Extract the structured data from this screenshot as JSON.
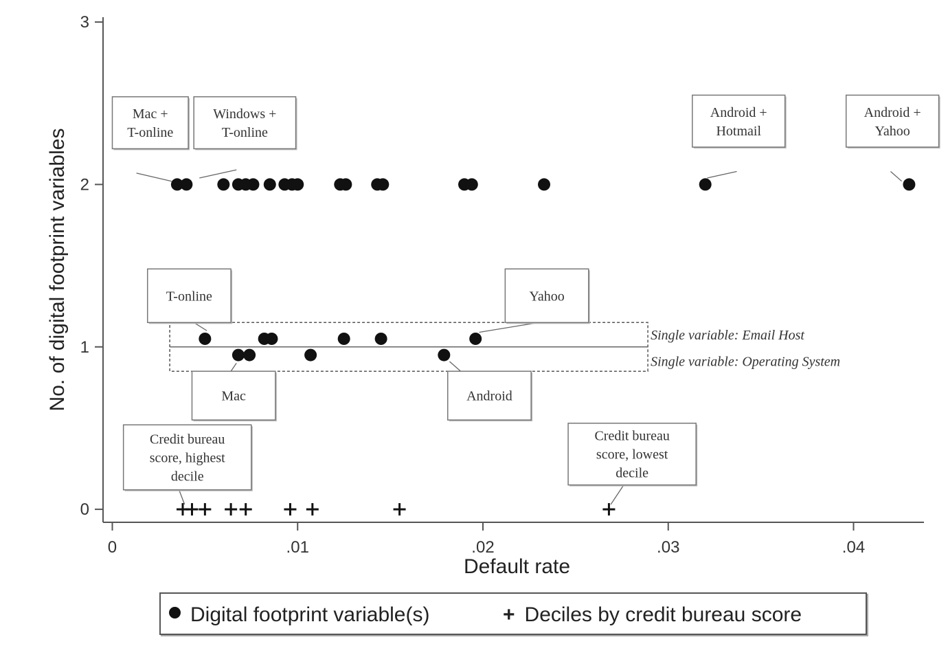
{
  "chart_data": {
    "type": "scatter",
    "xlabel": "Default rate",
    "ylabel": "No. of digital footprint variables",
    "xlim": [
      -0.0005,
      0.0438
    ],
    "ylim": [
      -0.08,
      3.03
    ],
    "x_ticks": [
      {
        "value": 0,
        "label": "0"
      },
      {
        "value": 0.01,
        "label": ".01"
      },
      {
        "value": 0.02,
        "label": ".02"
      },
      {
        "value": 0.03,
        "label": ".03"
      },
      {
        "value": 0.04,
        "label": ".04"
      }
    ],
    "y_ticks": [
      {
        "value": 0,
        "label": "0"
      },
      {
        "value": 1,
        "label": "1"
      },
      {
        "value": 2,
        "label": "2"
      },
      {
        "value": 3,
        "label": "3"
      }
    ],
    "grid": false,
    "legend_position": "bottom",
    "series": [
      {
        "name": "Digital footprint variable(s)",
        "marker": "dot",
        "points": [
          {
            "x": 0.0035,
            "y": 2
          },
          {
            "x": 0.004,
            "y": 2
          },
          {
            "x": 0.006,
            "y": 2
          },
          {
            "x": 0.0068,
            "y": 2
          },
          {
            "x": 0.0072,
            "y": 2
          },
          {
            "x": 0.0076,
            "y": 2
          },
          {
            "x": 0.0085,
            "y": 2
          },
          {
            "x": 0.0093,
            "y": 2
          },
          {
            "x": 0.0097,
            "y": 2
          },
          {
            "x": 0.01,
            "y": 2
          },
          {
            "x": 0.0123,
            "y": 2
          },
          {
            "x": 0.0126,
            "y": 2
          },
          {
            "x": 0.0143,
            "y": 2
          },
          {
            "x": 0.0146,
            "y": 2
          },
          {
            "x": 0.019,
            "y": 2
          },
          {
            "x": 0.0194,
            "y": 2
          },
          {
            "x": 0.0233,
            "y": 2
          },
          {
            "x": 0.032,
            "y": 2
          },
          {
            "x": 0.043,
            "y": 2
          },
          {
            "x": 0.005,
            "y": 1.05
          },
          {
            "x": 0.0082,
            "y": 1.05
          },
          {
            "x": 0.0086,
            "y": 1.05
          },
          {
            "x": 0.0125,
            "y": 1.05
          },
          {
            "x": 0.0145,
            "y": 1.05
          },
          {
            "x": 0.0196,
            "y": 1.05
          },
          {
            "x": 0.0068,
            "y": 0.95
          },
          {
            "x": 0.0074,
            "y": 0.95
          },
          {
            "x": 0.0107,
            "y": 0.95
          },
          {
            "x": 0.0179,
            "y": 0.95
          }
        ]
      },
      {
        "name": "Deciles by credit bureau score",
        "marker": "plus",
        "points": [
          {
            "x": 0.0038,
            "y": 0
          },
          {
            "x": 0.0043,
            "y": 0
          },
          {
            "x": 0.005,
            "y": 0
          },
          {
            "x": 0.0064,
            "y": 0
          },
          {
            "x": 0.0072,
            "y": 0
          },
          {
            "x": 0.0096,
            "y": 0
          },
          {
            "x": 0.0108,
            "y": 0
          },
          {
            "x": 0.0155,
            "y": 0
          },
          {
            "x": 0.0268,
            "y": 0
          }
        ]
      }
    ],
    "bands": [
      {
        "x1": 0.0031,
        "x2": 0.0289,
        "y1": 0.85,
        "y2": 1.15,
        "mid": 1.0,
        "label_top": "Single variable: Email Host",
        "label_bottom": "Single variable: Operating System"
      }
    ],
    "annotations": [
      {
        "lines": [
          "Mac +",
          "T-online"
        ],
        "box": [
          0.0,
          2.22,
          0.0041,
          2.54
        ],
        "target": [
          0.0032,
          2.02
        ],
        "from": [
          0.0013,
          2.07
        ]
      },
      {
        "lines": [
          "Windows +",
          "T-online"
        ],
        "box": [
          0.0044,
          2.22,
          0.0099,
          2.54
        ],
        "target": [
          0.0047,
          2.04
        ],
        "from": [
          0.0067,
          2.09
        ]
      },
      {
        "lines": [
          "Android +",
          "Hotmail"
        ],
        "box": [
          0.0313,
          2.23,
          0.0363,
          2.55
        ],
        "target": [
          0.0321,
          2.04
        ],
        "from": [
          0.0337,
          2.08
        ]
      },
      {
        "lines": [
          "Android +",
          "Yahoo"
        ],
        "box": [
          0.0396,
          2.23,
          0.0446,
          2.55
        ],
        "target": [
          0.0426,
          2.02
        ],
        "from": [
          0.042,
          2.08
        ]
      },
      {
        "lines": [
          "T-online"
        ],
        "box": [
          0.0019,
          1.15,
          0.0064,
          1.48
        ],
        "target": [
          0.0051,
          1.1
        ],
        "from": [
          0.0044,
          1.15
        ]
      },
      {
        "lines": [
          "Yahoo"
        ],
        "box": [
          0.0212,
          1.15,
          0.0257,
          1.48
        ],
        "target": [
          0.0198,
          1.09
        ],
        "from": [
          0.023,
          1.15
        ]
      },
      {
        "lines": [
          "Mac"
        ],
        "box": [
          0.0043,
          0.55,
          0.0088,
          0.85
        ],
        "target": [
          0.0067,
          0.9
        ],
        "from": [
          0.0064,
          0.85
        ]
      },
      {
        "lines": [
          "Android"
        ],
        "box": [
          0.0181,
          0.55,
          0.0226,
          0.85
        ],
        "target": [
          0.0182,
          0.91
        ],
        "from": [
          0.0188,
          0.85
        ]
      },
      {
        "lines": [
          "Credit bureau",
          "score,  highest",
          "decile"
        ],
        "box": [
          0.0006,
          0.12,
          0.0075,
          0.52
        ],
        "target": [
          0.0039,
          0.03
        ],
        "from": [
          0.0036,
          0.12
        ]
      },
      {
        "lines": [
          "Credit bureau",
          "score,  lowest",
          "decile"
        ],
        "box": [
          0.0246,
          0.15,
          0.0315,
          0.53
        ],
        "target": [
          0.0269,
          0.03
        ],
        "from": [
          0.0276,
          0.15
        ]
      }
    ]
  }
}
